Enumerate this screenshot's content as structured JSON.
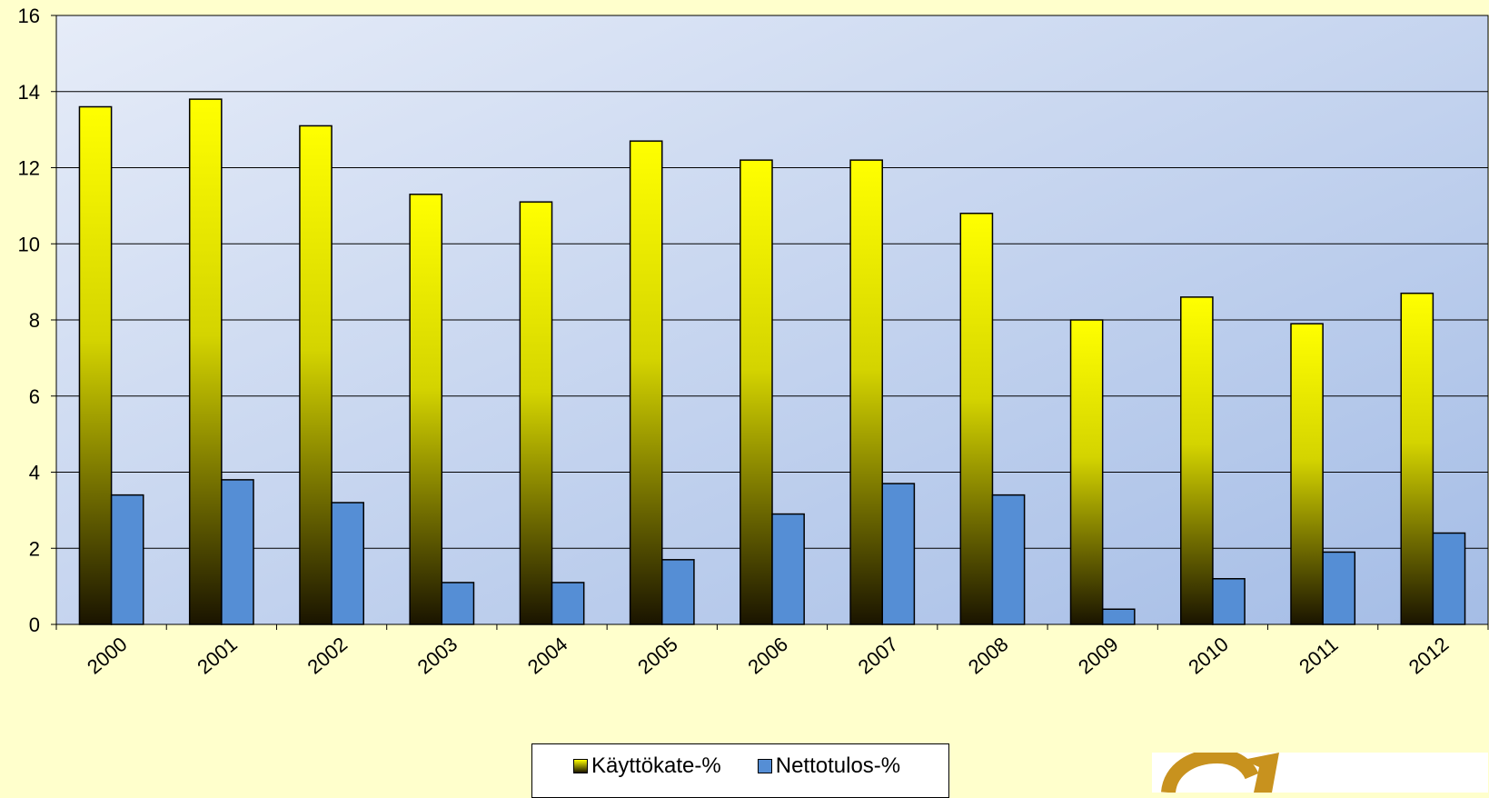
{
  "chart_data": {
    "type": "bar",
    "categories": [
      "2000",
      "2001",
      "2002",
      "2003",
      "2004",
      "2005",
      "2006",
      "2007",
      "2008",
      "2009",
      "2010",
      "2011",
      "2012"
    ],
    "series": [
      {
        "name": "Käyttökate-%",
        "values": [
          13.6,
          13.8,
          13.1,
          11.3,
          11.1,
          12.7,
          12.2,
          12.2,
          10.8,
          8.0,
          8.6,
          7.9,
          8.7
        ],
        "color": "#ffff00"
      },
      {
        "name": "Nettotulos-%",
        "values": [
          3.4,
          3.8,
          3.2,
          1.1,
          1.1,
          1.7,
          2.9,
          3.7,
          3.4,
          0.4,
          1.2,
          1.9,
          2.4
        ],
        "color": "#558ed5"
      }
    ],
    "title": "",
    "xlabel": "",
    "ylabel": "",
    "ylim": [
      0,
      16
    ],
    "yticks": [
      "0",
      "2",
      "4",
      "6",
      "8",
      "10",
      "12",
      "14",
      "16"
    ],
    "grid": true,
    "legend_position": "bottom"
  },
  "colors": {
    "page_background": "#ffffcc",
    "plot_gradient_start": "#e6ecf8",
    "plot_gradient_end": "#a5bde6",
    "logo": "#c8921e"
  },
  "legend": {
    "items": [
      {
        "label": "Käyttökate-%",
        "swatch": "#ffff00"
      },
      {
        "label": "Nettotulos-%",
        "swatch": "#558ed5"
      }
    ]
  },
  "logo_icon": "ring-logo-icon"
}
